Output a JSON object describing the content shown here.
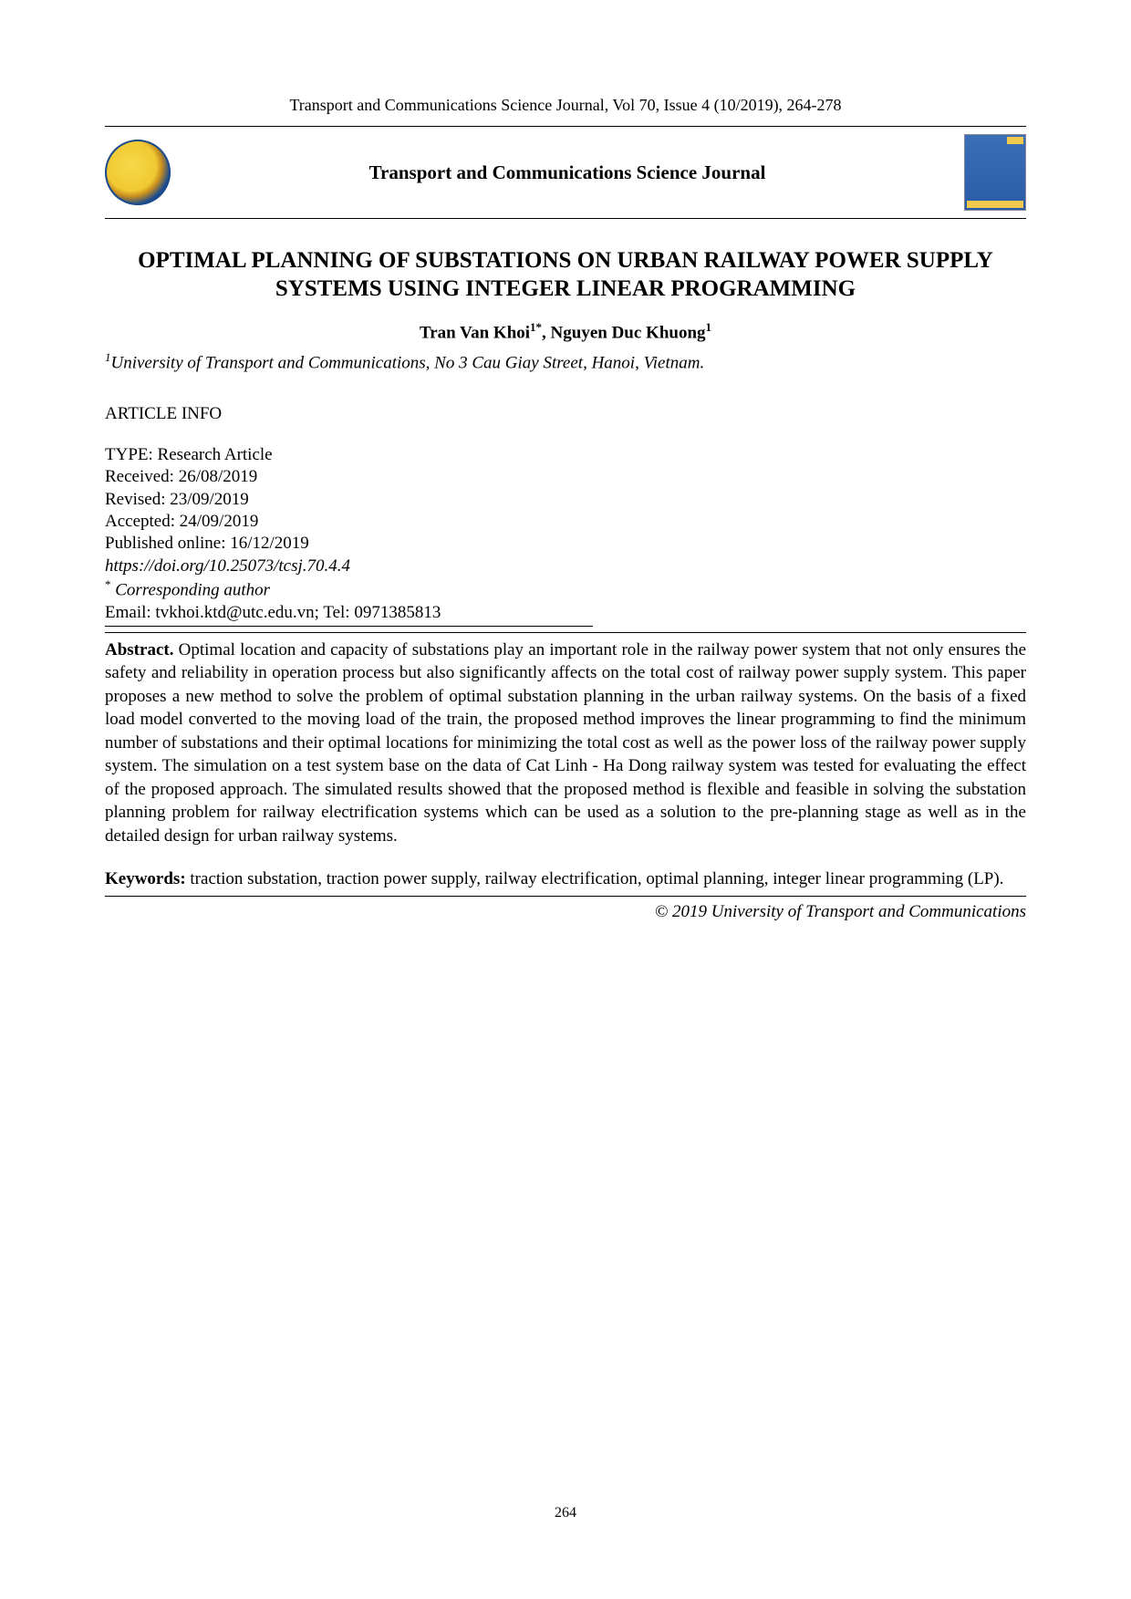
{
  "header": {
    "citation": "Transport and Communications Science Journal, Vol 70, Issue 4 (10/2019), 264-278"
  },
  "banner": {
    "journal_name": "Transport and Communications Science Journal"
  },
  "article": {
    "title": "OPTIMAL PLANNING OF SUBSTATIONS ON URBAN RAILWAY POWER SUPPLY SYSTEMS USING INTEGER LINEAR PROGRAMMING",
    "author1_name": "Tran Van Khoi",
    "author1_sup": "1*",
    "authors_sep": ", ",
    "author2_name": "Nguyen Duc Khuong",
    "author2_sup": "1",
    "affiliation_num": "1",
    "affiliation": "University of Transport and Communications, No 3 Cau Giay Street, Hanoi, Vietnam."
  },
  "info": {
    "heading": "ARTICLE INFO",
    "type": "TYPE: Research Article",
    "received": "Received: 26/08/2019",
    "revised": "Revised: 23/09/2019",
    "accepted": "Accepted: 24/09/2019",
    "published": "Published online: 16/12/2019",
    "doi": "https://doi.org/10.25073/tcsj.70.4.4",
    "corresponding_mark": "*",
    "corresponding": " Corresponding author",
    "contact": "Email: tvkhoi.ktd@utc.edu.vn; Tel: 0971385813"
  },
  "abstract": {
    "label": "Abstract.",
    "text": " Optimal location and capacity of substations play an important role in the railway power system that not only ensures the safety and reliability in operation process but also significantly affects on the total cost of railway power supply system. This paper proposes a new method to solve the problem of optimal substation planning in the urban railway systems. On the basis of a fixed load model converted to the moving load of the train, the proposed method improves the linear programming to find the minimum number of substations and their optimal locations for minimizing the total cost as well as the power loss of the railway power supply system. The simulation on a test system base on the data of Cat Linh - Ha Dong railway system was tested for evaluating the effect of the proposed approach. The simulated results showed that the proposed method is flexible and feasible in solving the substation planning problem for railway electrification systems which can be used as a solution  to the pre-planning stage as well as in the detailed design for urban railway systems."
  },
  "keywords": {
    "label": "Keywords:",
    "text": " traction substation, traction power supply, railway electrification, optimal planning, integer linear programming (LP)."
  },
  "copyright": "© 2019 University of Transport and Communications",
  "page_number": "264"
}
